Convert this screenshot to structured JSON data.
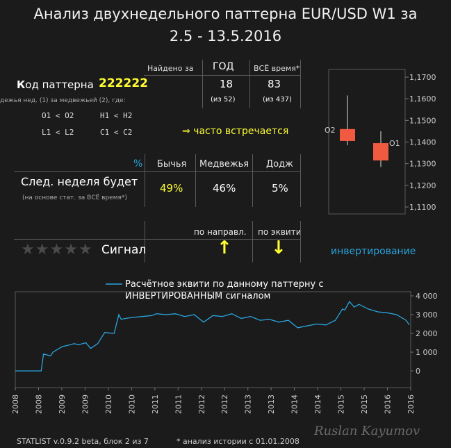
{
  "title": {
    "line1": "Анализ двухнедельного паттерна EUR/USD W1 за",
    "line2": "2.5 - 13.5.2016"
  },
  "stats": {
    "found_label": "Найдено за",
    "col_year": "ГОД",
    "col_all": "ВСЁ время*",
    "pattern_label_first": "К",
    "pattern_label_rest": "од паттерна",
    "pattern_code": "222222",
    "year_count": "18",
    "all_count": "83",
    "year_total": "(из 52)",
    "all_total": "(из 437)",
    "desc": "дежья нед. (1) за медвежьей (2), где:",
    "cond1": "O1 < O2",
    "cond2": "H1 < H2",
    "cond3": "L1 < L2",
    "cond4": "C1 < C2",
    "frequency": "⇒ часто встречается"
  },
  "forecast": {
    "percent_sign": "%",
    "col_bull": "Бычья",
    "col_bear": "Медвежья",
    "col_doji": "Додж",
    "label": "След. неделя будет",
    "note": "(на основе стат. за ВСЁ время*)",
    "bull": "49%",
    "bear": "46%",
    "doji": "5%"
  },
  "signal": {
    "col_dir": "по направл.",
    "col_equity": "по эквити",
    "label": "Сигнал",
    "stars_filled": 0,
    "stars_total": 5,
    "up_arrow": "↑",
    "down_arrow": "↓",
    "inversion": "инвертирование"
  },
  "candles": {
    "y_ticks": [
      "1,1700",
      "1,1600",
      "1,1500",
      "1,1400",
      "1,1300",
      "1,1200",
      "1,1100"
    ],
    "label_o2": "O2",
    "label_o1": "O1",
    "color": "#f05a40"
  },
  "chart_data": [
    {
      "type": "candlestick",
      "y_ticks": [
        1.17,
        1.16,
        1.15,
        1.14,
        1.13,
        1.12,
        1.11
      ],
      "ylim": [
        1.105,
        1.175
      ],
      "series": [
        {
          "name": "O2",
          "open": 1.146,
          "high": 1.1615,
          "low": 1.1385,
          "close": 1.1405
        },
        {
          "name": "O1",
          "open": 1.1395,
          "high": 1.145,
          "low": 1.1285,
          "close": 1.1315
        }
      ]
    },
    {
      "type": "line",
      "legend": "Расчётное эквити по данному паттерну с ИНВЕРТИРОВАННЫМ сигналом",
      "y_ticks": [
        "4 000",
        "3 000",
        "2 000",
        "1 000",
        "0"
      ],
      "ylim": [
        -200,
        4000
      ],
      "x_ticks": [
        "2008",
        "2008",
        "2009",
        "2009",
        "2010",
        "2010",
        "2011",
        "2011",
        "2012",
        "2012",
        "2013",
        "2013",
        "2014",
        "2014",
        "2015",
        "2015",
        "2016",
        "2016"
      ],
      "xlim": [
        2008.0,
        2016.4
      ],
      "x": [
        2008.0,
        2008.55,
        2008.6,
        2008.75,
        2008.8,
        2009.0,
        2009.1,
        2009.25,
        2009.35,
        2009.5,
        2009.6,
        2009.75,
        2009.9,
        2010.1,
        2010.2,
        2010.25,
        2010.35,
        2010.5,
        2010.7,
        2010.9,
        2011.0,
        2011.2,
        2011.4,
        2011.6,
        2011.8,
        2012.0,
        2012.2,
        2012.4,
        2012.6,
        2012.8,
        2013.0,
        2013.2,
        2013.4,
        2013.6,
        2013.8,
        2014.0,
        2014.2,
        2014.4,
        2014.6,
        2014.8,
        2014.95,
        2015.0,
        2015.1,
        2015.2,
        2015.3,
        2015.5,
        2015.7,
        2015.9,
        2016.1,
        2016.3,
        2016.37
      ],
      "y": [
        0,
        0,
        900,
        800,
        1000,
        1300,
        1350,
        1450,
        1400,
        1500,
        1200,
        1450,
        2050,
        2000,
        3000,
        2750,
        2800,
        2850,
        2900,
        2950,
        3050,
        3000,
        3050,
        2900,
        3000,
        2600,
        2950,
        2900,
        3050,
        2800,
        2900,
        2700,
        2750,
        2600,
        2700,
        2300,
        2400,
        2500,
        2450,
        2700,
        3300,
        3250,
        3700,
        3400,
        3550,
        3300,
        3150,
        3100,
        3000,
        2700,
        2450
      ]
    }
  ],
  "footer": {
    "version": "STATLIST v.0.9.2 beta, блок 2 из 7",
    "history": "* анализ истории с  01.01.2008"
  },
  "watermark": "Ruslan Kayumov"
}
